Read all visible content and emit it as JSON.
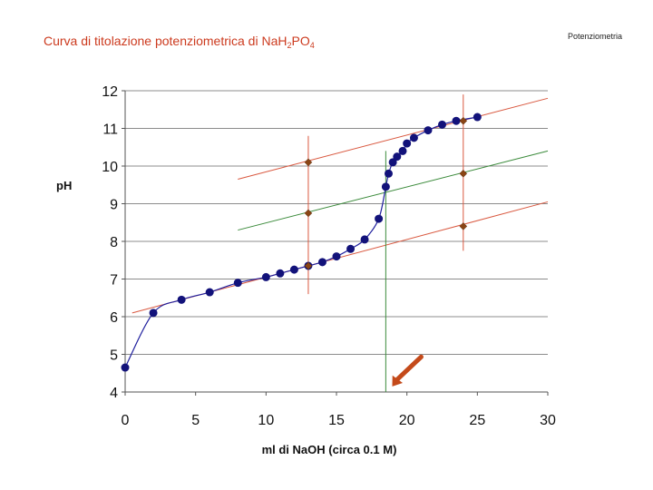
{
  "header": {
    "title_prefix": "Curva di titolazione potenziometrica di NaH",
    "title_sub1": "2",
    "title_mid": "PO",
    "title_sub2": "4",
    "corner_label": "Potenziometria"
  },
  "chart_data": {
    "type": "scatter",
    "title": "Curva di titolazione potenziometrica di NaH2PO4",
    "xlabel": "ml di NaOH (circa 0.1 M)",
    "ylabel": "pH",
    "xlim": [
      0,
      30
    ],
    "ylim": [
      4,
      12
    ],
    "xticks": [
      0,
      5,
      10,
      15,
      20,
      25,
      30
    ],
    "yticks": [
      4,
      5,
      6,
      7,
      8,
      9,
      10,
      11,
      12
    ],
    "grid": "horizontal",
    "colors": {
      "curve": "#1f1f9e",
      "points": "#12127a",
      "tangent": "#d9583f",
      "midline": "#3a8a3a",
      "equivalence": "#3a8a3a",
      "markers": "#8a4515",
      "arrow": "#c44a1a"
    },
    "series": [
      {
        "values": [
          {
            "x": 0,
            "y": 4.65
          },
          {
            "x": 2,
            "y": 6.1
          },
          {
            "x": 4,
            "y": 6.45
          },
          {
            "x": 6,
            "y": 6.65
          },
          {
            "x": 8,
            "y": 6.9
          },
          {
            "x": 10,
            "y": 7.05
          },
          {
            "x": 11,
            "y": 7.15
          },
          {
            "x": 12,
            "y": 7.25
          },
          {
            "x": 13,
            "y": 7.35
          },
          {
            "x": 14,
            "y": 7.45
          },
          {
            "x": 15,
            "y": 7.6
          },
          {
            "x": 16,
            "y": 7.8
          },
          {
            "x": 17,
            "y": 8.05
          },
          {
            "x": 18,
            "y": 8.6
          },
          {
            "x": 18.5,
            "y": 9.45
          },
          {
            "x": 18.7,
            "y": 9.8
          },
          {
            "x": 19,
            "y": 10.1
          },
          {
            "x": 19.3,
            "y": 10.25
          },
          {
            "x": 19.7,
            "y": 10.4
          },
          {
            "x": 20,
            "y": 10.6
          },
          {
            "x": 20.5,
            "y": 10.75
          },
          {
            "x": 21.5,
            "y": 10.95
          },
          {
            "x": 22.5,
            "y": 11.1
          },
          {
            "x": 23.5,
            "y": 11.2
          },
          {
            "x": 25,
            "y": 11.3
          }
        ]
      }
    ],
    "tangent_lines": [
      {
        "from": [
          0.5,
          6.1
        ],
        "to": [
          30,
          9.05
        ]
      },
      {
        "from": [
          8,
          9.65
        ],
        "to": [
          30,
          11.8
        ]
      }
    ],
    "mid_line": {
      "from": [
        8,
        8.3
      ],
      "to": [
        30,
        10.4
      ]
    },
    "vertical_markers": [
      {
        "x": 13,
        "ymin": 6.6,
        "ymax": 10.8,
        "points": [
          7.35,
          8.75,
          10.1
        ]
      },
      {
        "x": 24,
        "ymin": 7.75,
        "ymax": 11.9,
        "points": [
          8.4,
          9.8,
          11.2
        ]
      }
    ],
    "equivalence_line": {
      "x": 18.5,
      "ymin": 4,
      "ymax": 10.4
    },
    "arrow": {
      "from": [
        20.5,
        4.5
      ],
      "to": [
        18.7,
        4.05
      ]
    }
  }
}
